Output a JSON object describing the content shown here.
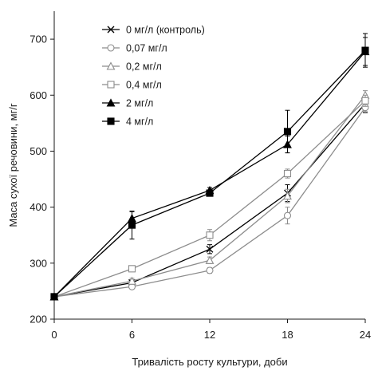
{
  "chart_data": {
    "type": "line",
    "title": "",
    "xlabel": "Тривалість росту культури, доби",
    "ylabel": "Маса сухої речовини, мг/г",
    "x": [
      0,
      6,
      12,
      18,
      24
    ],
    "xlim": [
      0,
      24
    ],
    "ylim": [
      200,
      750
    ],
    "xticks": [
      "0",
      "6",
      "12",
      "18",
      "24"
    ],
    "yticks": [
      "200",
      "300",
      "400",
      "500",
      "600",
      "700"
    ],
    "grid": false,
    "legend_position": "top-left",
    "series": [
      {
        "name": "0 мг/л (контроль)",
        "marker": "x",
        "color": "#000000",
        "values": [
          240,
          265,
          325,
          425,
          585
        ],
        "errors": [
          0,
          5,
          8,
          15,
          15
        ]
      },
      {
        "name": "0,07 мг/л",
        "marker": "circle-open",
        "color": "#8c8c8c",
        "values": [
          240,
          258,
          287,
          385,
          578
        ],
        "errors": [
          0,
          4,
          5,
          15,
          10
        ]
      },
      {
        "name": "0,2 мг/л",
        "marker": "triangle-open",
        "color": "#8c8c8c",
        "values": [
          240,
          268,
          305,
          420,
          600
        ],
        "errors": [
          0,
          5,
          6,
          12,
          8
        ]
      },
      {
        "name": "0,4 мг/л",
        "marker": "square-open",
        "color": "#8c8c8c",
        "values": [
          240,
          290,
          350,
          460,
          590
        ],
        "errors": [
          0,
          5,
          10,
          8,
          10
        ]
      },
      {
        "name": "2 мг/л",
        "marker": "triangle-filled",
        "color": "#000000",
        "values": [
          240,
          380,
          430,
          512,
          678
        ],
        "errors": [
          0,
          12,
          5,
          15,
          25
        ]
      },
      {
        "name": "4 мг/л",
        "marker": "square-filled",
        "color": "#000000",
        "values": [
          240,
          368,
          425,
          535,
          680
        ],
        "errors": [
          0,
          25,
          5,
          38,
          30
        ]
      }
    ]
  }
}
